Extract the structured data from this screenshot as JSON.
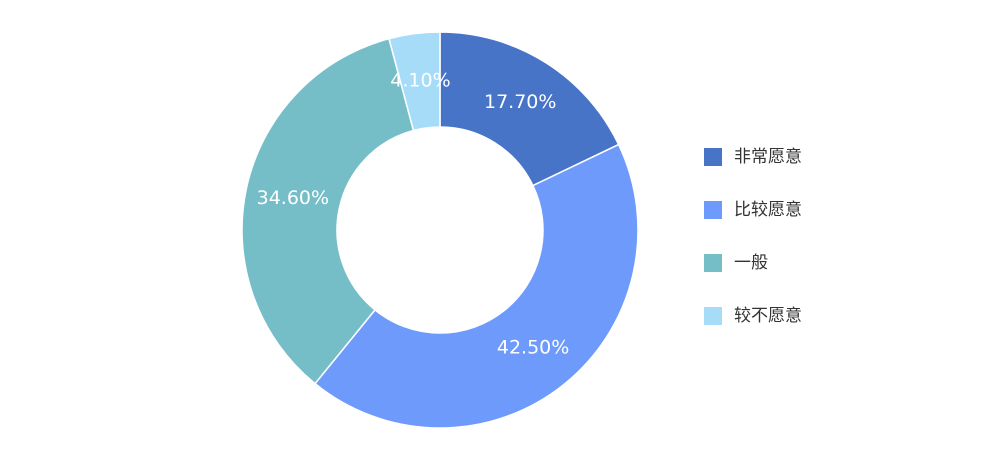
{
  "chart_data": {
    "type": "donut",
    "categories": [
      "非常愿意",
      "比较愿意",
      "一般",
      "较不愿意"
    ],
    "values": [
      17.7,
      42.5,
      34.6,
      4.1
    ],
    "value_labels": [
      "17.70%",
      "42.50%",
      "34.60%",
      "4.10%"
    ],
    "colors": [
      "#4874c8",
      "#6e9bfb",
      "#75bec8",
      "#a6dcf7"
    ],
    "legend": "right"
  }
}
